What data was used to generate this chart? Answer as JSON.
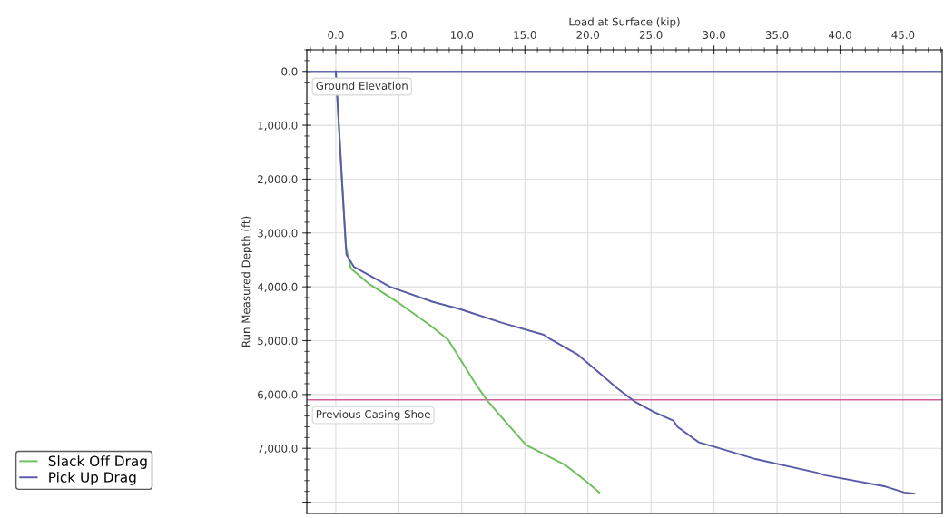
{
  "chart_data": {
    "type": "line",
    "xlabel": "Load at Surface (kip)",
    "ylabel": "Run Measured Depth (ft)",
    "xlim": [
      -2.3,
      48.1
    ],
    "ylim": [
      8210,
      -400
    ],
    "xticks": [
      {
        "value": 0,
        "label": "0.0"
      },
      {
        "value": 5,
        "label": "5.0"
      },
      {
        "value": 10,
        "label": "10.0"
      },
      {
        "value": 15,
        "label": "15.0"
      },
      {
        "value": 20,
        "label": "20.0"
      },
      {
        "value": 25,
        "label": "25.0"
      },
      {
        "value": 30,
        "label": "30.0"
      },
      {
        "value": 35,
        "label": "35.0"
      },
      {
        "value": 40,
        "label": "40.0"
      },
      {
        "value": 45,
        "label": "45.0"
      }
    ],
    "yticks": [
      {
        "value": 0,
        "label": "0.0"
      },
      {
        "value": 1000,
        "label": "1,000.0"
      },
      {
        "value": 2000,
        "label": "2,000.0"
      },
      {
        "value": 3000,
        "label": "3,000.0"
      },
      {
        "value": 4000,
        "label": "4,000.0"
      },
      {
        "value": 5000,
        "label": "5,000.0"
      },
      {
        "value": 6000,
        "label": "6,000.0"
      },
      {
        "value": 7000,
        "label": "7,000.0"
      },
      {
        "value": 8000,
        "label": null
      }
    ],
    "grid": true,
    "legend": "bottom left",
    "marker": "none",
    "line_style": "solid",
    "series": [
      {
        "name": "Slack Off Drag",
        "color": "#6cbf5c",
        "x": [
          0,
          0.5,
          0.8,
          1.2,
          2.6,
          5.0,
          7.4,
          8.9,
          10.1,
          11.0,
          12.0,
          13.4,
          15.1,
          15.6,
          18.2,
          19.9,
          20.9
        ],
        "values": [
          0,
          2060,
          3250,
          3660,
          3940,
          4300,
          4700,
          4980,
          5430,
          5770,
          6110,
          6490,
          6940,
          7000,
          7310,
          7620,
          7820
        ]
      },
      {
        "name": "Pick Up Drag",
        "color": "#5a5aa8",
        "x": [
          0,
          0.5,
          0.8,
          0.84,
          1.44,
          4.3,
          7.7,
          9.8,
          13.2,
          16.5,
          17.0,
          19.2,
          20.9,
          22.3,
          23.7,
          25.2,
          26.8,
          27.1,
          28.8,
          30.0,
          33.3,
          38.1,
          38.8,
          43.6,
          45.1,
          45.9
        ],
        "values": [
          0,
          2060,
          3250,
          3400,
          3630,
          4000,
          4280,
          4410,
          4670,
          4890,
          4970,
          5260,
          5600,
          5880,
          6130,
          6320,
          6490,
          6600,
          6890,
          6970,
          7200,
          7450,
          7500,
          7710,
          7820,
          7840
        ]
      }
    ],
    "ref_lines": [
      {
        "axis": "y",
        "value": 0,
        "label": "Ground Elevation",
        "color": "#6a6ab0"
      },
      {
        "axis": "y",
        "value": 6100,
        "label": "Previous Casing Shoe",
        "color": "#d0609a"
      }
    ]
  }
}
